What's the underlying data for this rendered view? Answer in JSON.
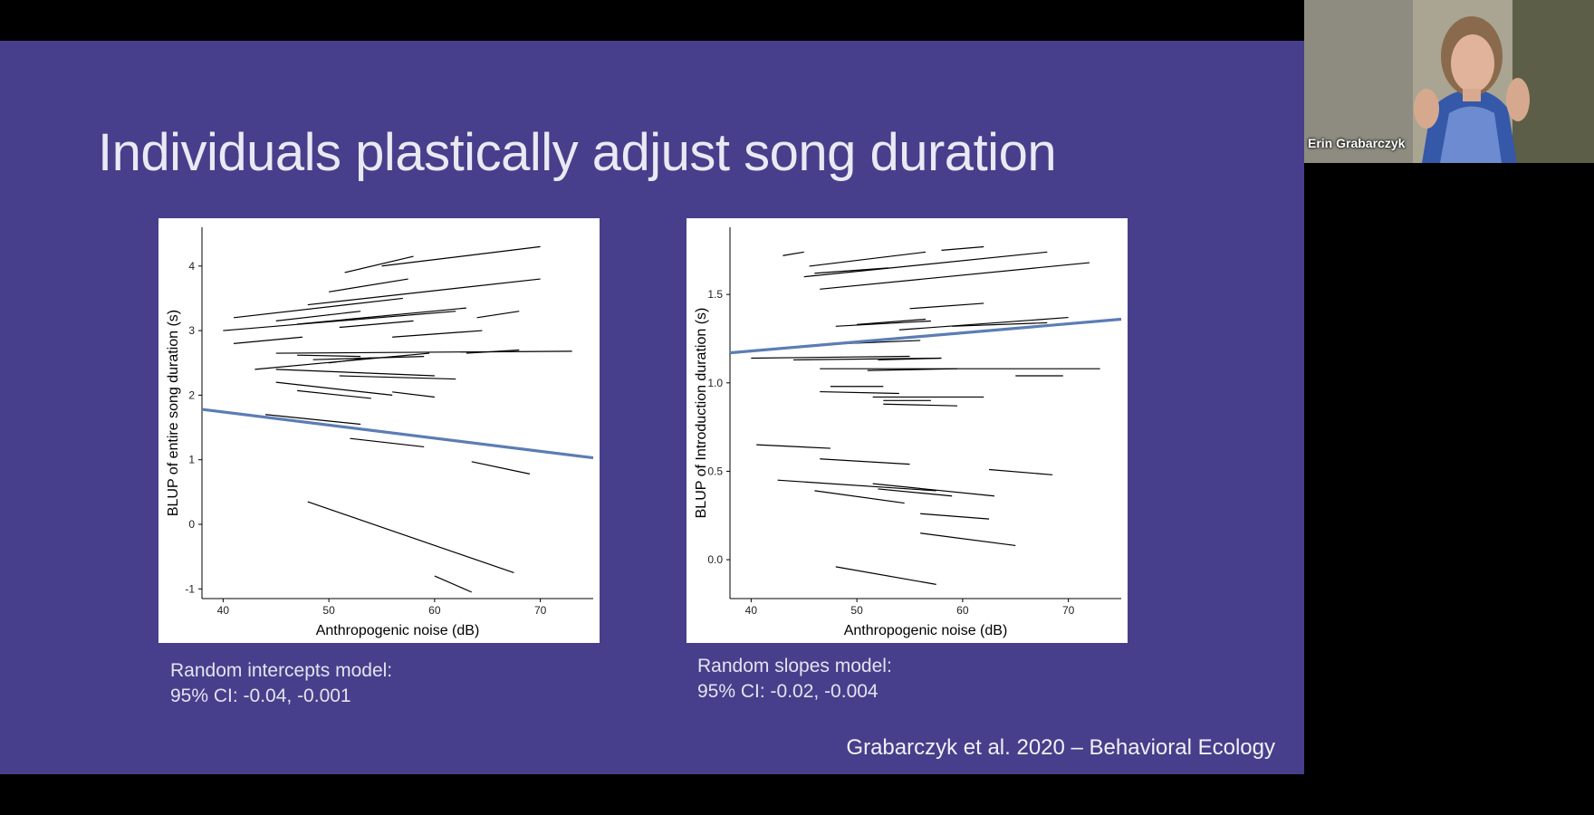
{
  "slide": {
    "title": "Individuals plastically adjust song duration",
    "captions": {
      "left_line1": "Random intercepts model:",
      "left_line2": "95% CI: -0.04, -0.001",
      "right_line1": "Random slopes model:",
      "right_line2": "95% CI: -0.02, -0.004"
    },
    "citation": "Grabarczyk et al. 2020 – Behavioral Ecology",
    "background": "#473f8b"
  },
  "participant": {
    "name": "Erin Grabarczyk"
  },
  "colors": {
    "trend": "#5b7db4",
    "segments": "#000000"
  },
  "chart_data": [
    {
      "type": "line",
      "xlabel": "Anthropogenic noise (dB)",
      "ylabel": "BLUP of entire song duration (s)",
      "xlim": [
        38,
        75
      ],
      "ylim": [
        -1.15,
        4.6
      ],
      "xticks": [
        40,
        50,
        60,
        70
      ],
      "yticks": [
        -1,
        0,
        1,
        2,
        3,
        4
      ],
      "trend": {
        "x": [
          38,
          75
        ],
        "y": [
          1.78,
          1.03
        ]
      },
      "segments": [
        [
          [
            51.5,
            3.9
          ],
          [
            58,
            4.15
          ]
        ],
        [
          [
            55,
            4.0
          ],
          [
            70,
            4.3
          ]
        ],
        [
          [
            50,
            3.6
          ],
          [
            57.5,
            3.8
          ]
        ],
        [
          [
            48,
            3.4
          ],
          [
            70,
            3.8
          ]
        ],
        [
          [
            41,
            3.2
          ],
          [
            57,
            3.5
          ]
        ],
        [
          [
            47,
            3.1
          ],
          [
            63,
            3.35
          ]
        ],
        [
          [
            45,
            3.15
          ],
          [
            53,
            3.3
          ]
        ],
        [
          [
            40,
            3.0
          ],
          [
            62,
            3.3
          ]
        ],
        [
          [
            51,
            3.05
          ],
          [
            58,
            3.15
          ]
        ],
        [
          [
            64,
            3.2
          ],
          [
            68,
            3.3
          ]
        ],
        [
          [
            41,
            2.8
          ],
          [
            47.5,
            2.9
          ]
        ],
        [
          [
            56,
            2.9
          ],
          [
            64.5,
            3.0
          ]
        ],
        [
          [
            45,
            2.65
          ],
          [
            73,
            2.68
          ]
        ],
        [
          [
            47,
            2.62
          ],
          [
            53,
            2.6
          ]
        ],
        [
          [
            48.5,
            2.55
          ],
          [
            59,
            2.6
          ]
        ],
        [
          [
            43,
            2.4
          ],
          [
            59.5,
            2.65
          ]
        ],
        [
          [
            50,
            2.5
          ],
          [
            54,
            2.58
          ]
        ],
        [
          [
            63,
            2.65
          ],
          [
            68,
            2.7
          ]
        ],
        [
          [
            45,
            2.4
          ],
          [
            60,
            2.3
          ]
        ],
        [
          [
            51,
            2.3
          ],
          [
            62,
            2.25
          ]
        ],
        [
          [
            45,
            2.2
          ],
          [
            56,
            2.0
          ]
        ],
        [
          [
            47,
            2.07
          ],
          [
            54,
            1.95
          ]
        ],
        [
          [
            56,
            2.05
          ],
          [
            60,
            1.97
          ]
        ],
        [
          [
            44,
            1.7
          ],
          [
            53,
            1.55
          ]
        ],
        [
          [
            52,
            1.33
          ],
          [
            59,
            1.2
          ]
        ],
        [
          [
            63.5,
            0.97
          ],
          [
            69,
            0.78
          ]
        ],
        [
          [
            48,
            0.35
          ],
          [
            67.5,
            -0.75
          ]
        ],
        [
          [
            60,
            -0.8
          ],
          [
            63.5,
            -1.05
          ]
        ]
      ]
    },
    {
      "type": "line",
      "xlabel": "Anthropogenic noise (dB)",
      "ylabel": "BLUP of Introduction duration (s)",
      "xlim": [
        38,
        75
      ],
      "ylim": [
        -0.22,
        1.88
      ],
      "xticks": [
        40,
        50,
        60,
        70
      ],
      "yticks": [
        0.0,
        0.5,
        1.0,
        1.5
      ],
      "trend": {
        "x": [
          38,
          75
        ],
        "y": [
          1.17,
          1.36
        ]
      },
      "segments": [
        [
          [
            43,
            1.72
          ],
          [
            45,
            1.74
          ]
        ],
        [
          [
            45.5,
            1.66
          ],
          [
            56.5,
            1.74
          ]
        ],
        [
          [
            58,
            1.75
          ],
          [
            62,
            1.77
          ]
        ],
        [
          [
            46,
            1.62
          ],
          [
            53,
            1.65
          ]
        ],
        [
          [
            45,
            1.6
          ],
          [
            68,
            1.74
          ]
        ],
        [
          [
            46.5,
            1.53
          ],
          [
            72,
            1.68
          ]
        ],
        [
          [
            55,
            1.42
          ],
          [
            62,
            1.45
          ]
        ],
        [
          [
            48,
            1.32
          ],
          [
            57,
            1.35
          ]
        ],
        [
          [
            50,
            1.33
          ],
          [
            56.5,
            1.36
          ]
        ],
        [
          [
            54,
            1.3
          ],
          [
            70,
            1.37
          ]
        ],
        [
          [
            59,
            1.32
          ],
          [
            68,
            1.34
          ]
        ],
        [
          [
            48,
            1.22
          ],
          [
            56,
            1.24
          ]
        ],
        [
          [
            40,
            1.14
          ],
          [
            55,
            1.15
          ]
        ],
        [
          [
            44,
            1.13
          ],
          [
            58,
            1.14
          ]
        ],
        [
          [
            52,
            1.13
          ],
          [
            58,
            1.14
          ]
        ],
        [
          [
            46.5,
            1.08
          ],
          [
            73,
            1.08
          ]
        ],
        [
          [
            51,
            1.07
          ],
          [
            59.5,
            1.08
          ]
        ],
        [
          [
            65,
            1.04
          ],
          [
            69.5,
            1.04
          ]
        ],
        [
          [
            47.5,
            0.98
          ],
          [
            52.5,
            0.98
          ]
        ],
        [
          [
            46.5,
            0.95
          ],
          [
            54,
            0.94
          ]
        ],
        [
          [
            51.5,
            0.92
          ],
          [
            62,
            0.92
          ]
        ],
        [
          [
            52.5,
            0.9
          ],
          [
            57,
            0.9
          ]
        ],
        [
          [
            52.5,
            0.88
          ],
          [
            59.5,
            0.87
          ]
        ],
        [
          [
            40.5,
            0.65
          ],
          [
            47.5,
            0.63
          ]
        ],
        [
          [
            46.5,
            0.57
          ],
          [
            55,
            0.54
          ]
        ],
        [
          [
            62.5,
            0.51
          ],
          [
            68.5,
            0.48
          ]
        ],
        [
          [
            42.5,
            0.45
          ],
          [
            57.5,
            0.39
          ]
        ],
        [
          [
            51.5,
            0.43
          ],
          [
            63,
            0.36
          ]
        ],
        [
          [
            52,
            0.4
          ],
          [
            59,
            0.36
          ]
        ],
        [
          [
            46,
            0.39
          ],
          [
            54.5,
            0.32
          ]
        ],
        [
          [
            56,
            0.26
          ],
          [
            62.5,
            0.23
          ]
        ],
        [
          [
            56,
            0.15
          ],
          [
            65,
            0.08
          ]
        ],
        [
          [
            48,
            -0.04
          ],
          [
            57.5,
            -0.14
          ]
        ]
      ]
    }
  ]
}
